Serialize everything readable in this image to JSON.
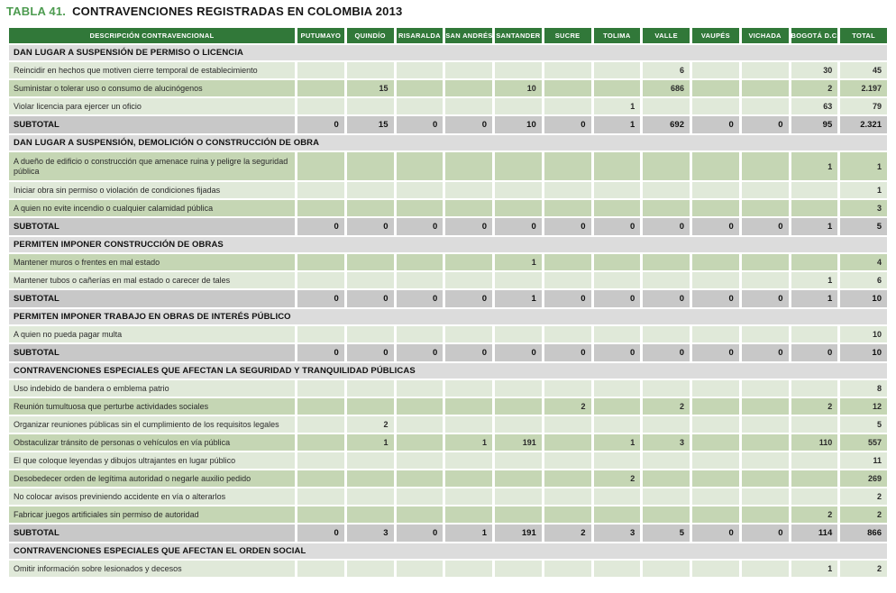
{
  "title": {
    "label": "TABLA 41.",
    "text": "CONTRAVENCIONES REGISTRADAS EN COLOMBIA 2013"
  },
  "colors": {
    "header_green": "#317839",
    "title_green": "#4d9b50",
    "section_bg": "#dcdcdc",
    "row_light": "#e0e9d9",
    "row_dark": "#c5d6b4",
    "subtotal_bg": "#c8c8c8"
  },
  "table": {
    "subtotal_label": "SUBTOTAL",
    "columns": [
      "DESCRIPCIÓN CONTRAVENCIONAL",
      "PUTUMAYO",
      "QUINDÍO",
      "RISARALDA",
      "SAN ANDRÉS",
      "SANTANDER",
      "SUCRE",
      "TOLIMA",
      "VALLE",
      "VAUPÉS",
      "VICHADA",
      "BOGOTÁ D.C.",
      "TOTAL"
    ],
    "sections": [
      {
        "header": "DAN LUGAR A SUSPENSIÓN DE PERMISO O LICENCIA",
        "rows": [
          {
            "desc": "Reincidir en hechos que motiven cierre temporal de establecimiento",
            "shade": "light",
            "values": [
              "",
              "",
              "",
              "",
              "",
              "",
              "",
              "6",
              "",
              "",
              "30",
              "45"
            ]
          },
          {
            "desc": "Suministar o tolerar uso o consumo de alucinógenos",
            "shade": "dark",
            "values": [
              "",
              "15",
              "",
              "",
              "10",
              "",
              "",
              "686",
              "",
              "",
              "2",
              "2.197"
            ]
          },
          {
            "desc": "Violar licencia para ejercer un oficio",
            "shade": "light",
            "values": [
              "",
              "",
              "",
              "",
              "",
              "",
              "1",
              "",
              "",
              "",
              "63",
              "79"
            ]
          }
        ],
        "subtotal": [
          "0",
          "15",
          "0",
          "0",
          "10",
          "0",
          "1",
          "692",
          "0",
          "0",
          "95",
          "2.321"
        ]
      },
      {
        "header": "DAN LUGAR A SUSPENSIÓN, DEMOLICIÓN O CONSTRUCCIÓN DE OBRA",
        "rows": [
          {
            "desc": "A dueño de edificio o construcción que amenace ruina y peligre la seguridad pública",
            "shade": "dark",
            "tall": true,
            "values": [
              "",
              "",
              "",
              "",
              "",
              "",
              "",
              "",
              "",
              "",
              "1",
              "1"
            ]
          },
          {
            "desc": "Iniciar obra sin permiso o violación de condiciones fijadas",
            "shade": "light",
            "values": [
              "",
              "",
              "",
              "",
              "",
              "",
              "",
              "",
              "",
              "",
              "",
              "1"
            ]
          },
          {
            "desc": "A quien no evite incendio o cualquier calamidad pública",
            "shade": "dark",
            "values": [
              "",
              "",
              "",
              "",
              "",
              "",
              "",
              "",
              "",
              "",
              "",
              "3"
            ]
          }
        ],
        "subtotal": [
          "0",
          "0",
          "0",
          "0",
          "0",
          "0",
          "0",
          "0",
          "0",
          "0",
          "1",
          "5"
        ]
      },
      {
        "header": "PERMITEN IMPONER CONSTRUCCIÓN DE OBRAS",
        "rows": [
          {
            "desc": "Mantener muros o frentes en mal estado",
            "shade": "dark",
            "values": [
              "",
              "",
              "",
              "",
              "1",
              "",
              "",
              "",
              "",
              "",
              "",
              "4"
            ]
          },
          {
            "desc": "Mantener tubos o cañerías en mal estado o carecer de tales",
            "shade": "light",
            "values": [
              "",
              "",
              "",
              "",
              "",
              "",
              "",
              "",
              "",
              "",
              "1",
              "6"
            ]
          }
        ],
        "subtotal": [
          "0",
          "0",
          "0",
          "0",
          "1",
          "0",
          "0",
          "0",
          "0",
          "0",
          "1",
          "10"
        ]
      },
      {
        "header": "PERMITEN IMPONER TRABAJO EN OBRAS DE INTERÉS PÚBLICO",
        "rows": [
          {
            "desc": "A quien no pueda pagar multa",
            "shade": "light",
            "values": [
              "",
              "",
              "",
              "",
              "",
              "",
              "",
              "",
              "",
              "",
              "",
              "10"
            ]
          }
        ],
        "subtotal": [
          "0",
          "0",
          "0",
          "0",
          "0",
          "0",
          "0",
          "0",
          "0",
          "0",
          "0",
          "10"
        ]
      },
      {
        "header": "CONTRAVENCIONES ESPECIALES QUE AFECTAN LA SEGURIDAD Y TRANQUILIDAD PÚBLICAS",
        "rows": [
          {
            "desc": "Uso indebido de bandera o emblema patrio",
            "shade": "light",
            "values": [
              "",
              "",
              "",
              "",
              "",
              "",
              "",
              "",
              "",
              "",
              "",
              "8"
            ]
          },
          {
            "desc": "Reunión tumultuosa que perturbe actividades sociales",
            "shade": "dark",
            "values": [
              "",
              "",
              "",
              "",
              "",
              "2",
              "",
              "2",
              "",
              "",
              "2",
              "12"
            ]
          },
          {
            "desc": "Organizar reuniones públicas sin el cumplimiento de los requisitos legales",
            "shade": "light",
            "values": [
              "",
              "2",
              "",
              "",
              "",
              "",
              "",
              "",
              "",
              "",
              "",
              "5"
            ]
          },
          {
            "desc": "Obstaculizar tránsito de personas o vehículos en vía pública",
            "shade": "dark",
            "values": [
              "",
              "1",
              "",
              "1",
              "191",
              "",
              "1",
              "3",
              "",
              "",
              "110",
              "557"
            ]
          },
          {
            "desc": "El que coloque leyendas y dibujos ultrajantes en lugar público",
            "shade": "light",
            "values": [
              "",
              "",
              "",
              "",
              "",
              "",
              "",
              "",
              "",
              "",
              "",
              "11"
            ]
          },
          {
            "desc": "Desobedecer orden de legítima autoridad o negarle auxilio pedido",
            "shade": "dark",
            "values": [
              "",
              "",
              "",
              "",
              "",
              "",
              "2",
              "",
              "",
              "",
              "",
              "269"
            ]
          },
          {
            "desc": "No colocar avisos previniendo accidente en vía o alterarlos",
            "shade": "light",
            "values": [
              "",
              "",
              "",
              "",
              "",
              "",
              "",
              "",
              "",
              "",
              "",
              "2"
            ]
          },
          {
            "desc": "Fabricar juegos artificiales sin permiso de autoridad",
            "shade": "dark",
            "values": [
              "",
              "",
              "",
              "",
              "",
              "",
              "",
              "",
              "",
              "",
              "2",
              "2"
            ]
          }
        ],
        "subtotal": [
          "0",
          "3",
          "0",
          "1",
          "191",
          "2",
          "3",
          "5",
          "0",
          "0",
          "114",
          "866"
        ]
      },
      {
        "header": "CONTRAVENCIONES ESPECIALES QUE AFECTAN EL ORDEN SOCIAL",
        "rows": [
          {
            "desc": "Omitir información sobre lesionados y decesos",
            "shade": "light",
            "values": [
              "",
              "",
              "",
              "",
              "",
              "",
              "",
              "",
              "",
              "",
              "1",
              "2"
            ]
          }
        ]
      }
    ]
  }
}
